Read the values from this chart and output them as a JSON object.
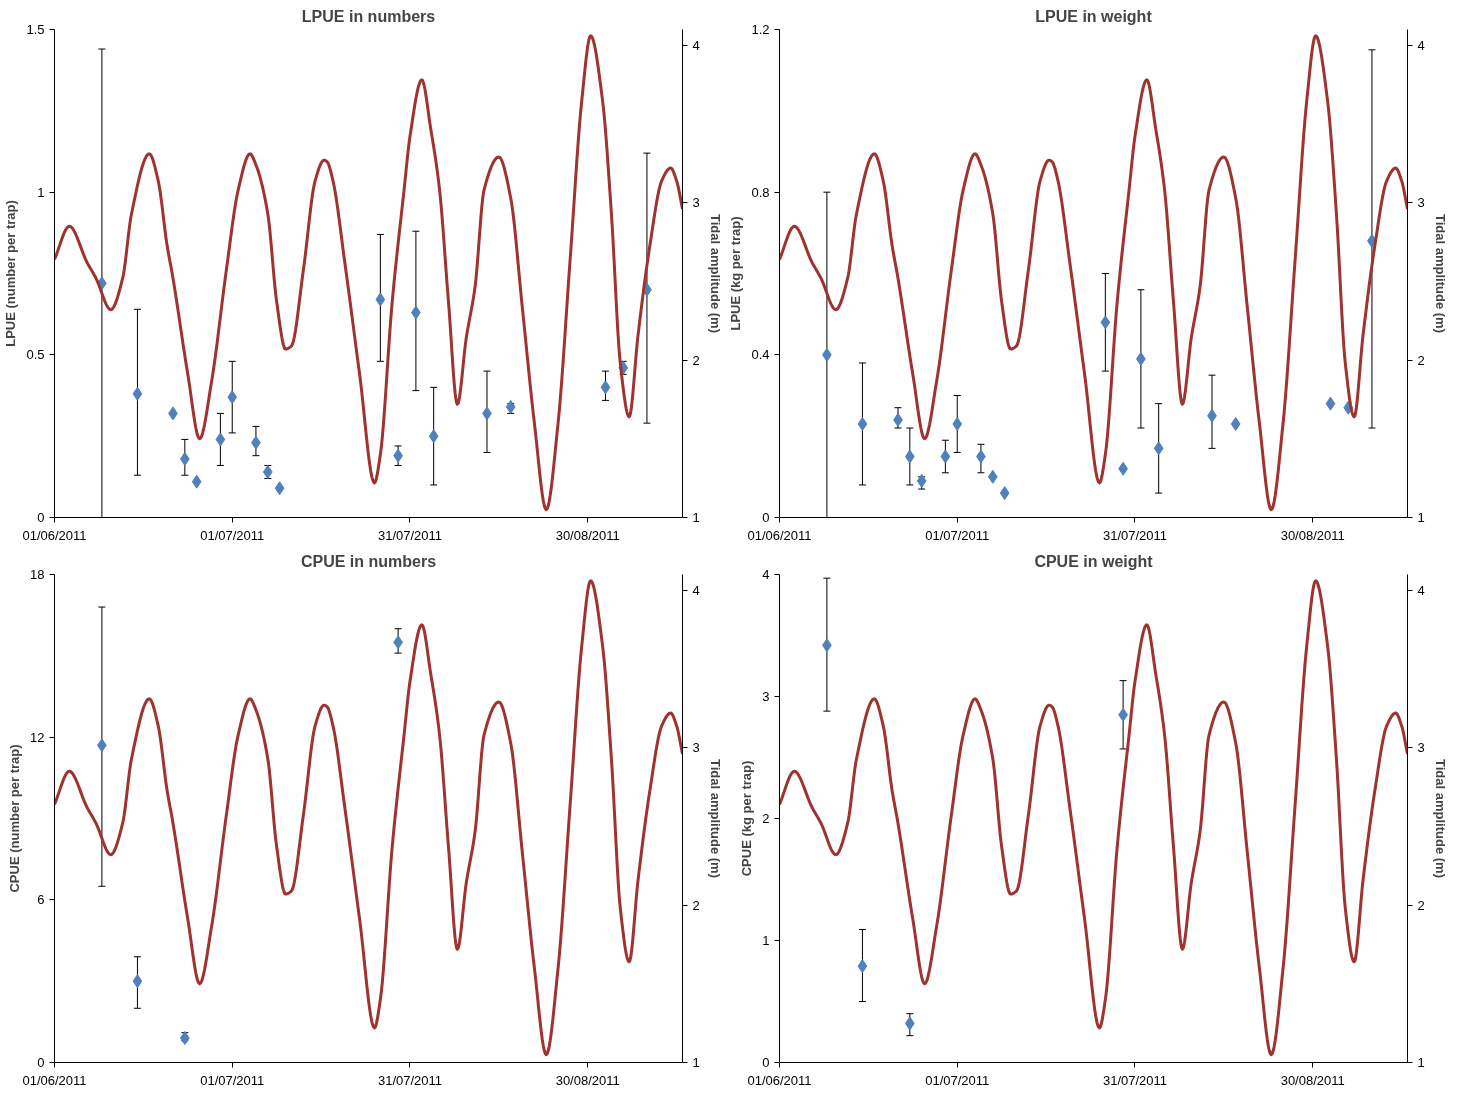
{
  "chart_data": [
    {
      "type": "scatter",
      "title": "LPUE in numbers",
      "ylabel": "LPUE (number per trap)",
      "y2label": "Tidal amplitude (m)",
      "marker": "diamond",
      "xlim": [
        "2011-06-01",
        "2011-09-15"
      ],
      "xticks": [
        {
          "value": "2011-06-01",
          "label": "01/06/2011"
        },
        {
          "value": "2011-07-01",
          "label": "01/07/2011"
        },
        {
          "value": "2011-07-31",
          "label": "31/07/2011"
        },
        {
          "value": "2011-08-30",
          "label": "30/08/2011"
        }
      ],
      "ylim": [
        0,
        1.5
      ],
      "yticks": [
        0,
        0.5,
        1,
        1.5
      ],
      "y2lim": [
        1,
        4.1
      ],
      "y2ticks": [
        1,
        2,
        3,
        4
      ],
      "series": [
        {
          "color": "#4f81bd",
          "x": [
            "2011-06-09",
            "2011-06-15",
            "2011-06-21",
            "2011-06-23",
            "2011-06-25",
            "2011-06-29",
            "2011-07-01",
            "2011-07-05",
            "2011-07-07",
            "2011-07-09",
            "2011-07-26",
            "2011-07-29",
            "2011-08-01",
            "2011-08-04",
            "2011-08-13",
            "2011-08-17",
            "2011-09-02",
            "2011-09-05",
            "2011-09-09"
          ],
          "values": [
            0.72,
            0.38,
            0.32,
            0.18,
            0.11,
            0.24,
            0.37,
            0.23,
            0.14,
            0.09,
            0.67,
            0.19,
            0.63,
            0.25,
            0.32,
            0.34,
            0.4,
            0.46,
            0.7
          ],
          "errors": [
            [
              0,
              1.44
            ],
            [
              0.13,
              0.64
            ],
            null,
            [
              0.13,
              0.24
            ],
            null,
            [
              0.16,
              0.32
            ],
            [
              0.26,
              0.48
            ],
            [
              0.19,
              0.28
            ],
            [
              0.12,
              0.16
            ],
            null,
            [
              0.48,
              0.87
            ],
            [
              0.16,
              0.22
            ],
            [
              0.39,
              0.88
            ],
            [
              0.1,
              0.4
            ],
            [
              0.2,
              0.45
            ],
            [
              0.32,
              0.35
            ],
            [
              0.36,
              0.45
            ],
            [
              0.44,
              0.48
            ],
            [
              0.29,
              1.12
            ]
          ]
        },
        {
          "type": "line",
          "marker": "none",
          "axis": "y2",
          "color": "#9e3330",
          "x": [
            "2011-06-01",
            "2011-06-03T12:00",
            "2011-06-06T12:00",
            "2011-06-08",
            "2011-06-10T12:00",
            "2011-06-12T12:00",
            "2011-06-14",
            "2011-06-17",
            "2011-06-18T12:00",
            "2011-06-20",
            "2011-06-21",
            "2011-06-23T12:00",
            "2011-06-25T12:00",
            "2011-06-27T12:00",
            "2011-06-30",
            "2011-07-02",
            "2011-07-04",
            "2011-07-05",
            "2011-07-07",
            "2011-07-08T12:00",
            "2011-07-10",
            "2011-07-11",
            "2011-07-13",
            "2011-07-15",
            "2011-07-16T12:00",
            "2011-07-17",
            "2011-07-18",
            "2011-07-20",
            "2011-07-22T12:00",
            "2011-07-25",
            "2011-07-26",
            "2011-07-28",
            "2011-07-30",
            "2011-07-31",
            "2011-08-02",
            "2011-08-03T12:00",
            "2011-08-05",
            "2011-08-06T12:00",
            "2011-08-08",
            "2011-08-09T12:00",
            "2011-08-11",
            "2011-08-12T12:00",
            "2011-08-15",
            "2011-08-17",
            "2011-08-19",
            "2011-08-21",
            "2011-08-23",
            "2011-08-25",
            "2011-08-27",
            "2011-08-29",
            "2011-08-30T12:00",
            "2011-09-01T12:00",
            "2011-09-03",
            "2011-09-04T12:00",
            "2011-09-06",
            "2011-09-07T12:00",
            "2011-09-09T12:00",
            "2011-09-11T12:00",
            "2011-09-13",
            "2011-09-14",
            "2011-09-15"
          ],
          "values": [
            2.64,
            2.85,
            2.62,
            2.52,
            2.32,
            2.52,
            2.93,
            3.31,
            3.14,
            2.73,
            2.52,
            1.91,
            1.5,
            1.86,
            2.57,
            3.08,
            3.31,
            3.24,
            2.93,
            2.37,
            2.07,
            2.09,
            2.57,
            3.14,
            3.27,
            3.26,
            3.14,
            2.62,
            1.91,
            1.22,
            1.4,
            2.37,
            3.08,
            3.42,
            3.78,
            3.47,
            3.08,
            2.37,
            1.72,
            2.14,
            2.47,
            3.08,
            3.29,
            3.03,
            2.32,
            1.6,
            1.05,
            1.6,
            2.62,
            3.65,
            4.06,
            3.65,
            2.93,
            1.98,
            1.64,
            2.16,
            2.73,
            3.14,
            3.22,
            3.14,
            2.96
          ]
        }
      ]
    },
    {
      "type": "scatter",
      "title": "LPUE in weight",
      "ylabel": "LPUE (kg per trap)",
      "y2label": "Tidal amplitude (m)",
      "marker": "diamond",
      "xlim": [
        "2011-06-01",
        "2011-09-15"
      ],
      "xticks": [
        {
          "value": "2011-06-01",
          "label": "01/06/2011"
        },
        {
          "value": "2011-07-01",
          "label": "01/07/2011"
        },
        {
          "value": "2011-07-31",
          "label": "31/07/2011"
        },
        {
          "value": "2011-08-30",
          "label": "30/08/2011"
        }
      ],
      "ylim": [
        0,
        1.2
      ],
      "yticks": [
        0,
        0.4,
        0.8,
        1.2
      ],
      "y2lim": [
        1,
        4.1
      ],
      "y2ticks": [
        1,
        2,
        3,
        4
      ],
      "series": [
        {
          "color": "#4f81bd",
          "x": [
            "2011-06-09",
            "2011-06-15",
            "2011-06-21",
            "2011-06-23",
            "2011-06-25",
            "2011-06-29",
            "2011-07-01",
            "2011-07-05",
            "2011-07-07",
            "2011-07-09",
            "2011-07-26",
            "2011-07-29",
            "2011-08-01",
            "2011-08-04",
            "2011-08-13",
            "2011-08-17",
            "2011-09-02",
            "2011-09-05",
            "2011-09-09"
          ],
          "values": [
            0.4,
            0.23,
            0.24,
            0.15,
            0.09,
            0.15,
            0.23,
            0.15,
            0.1,
            0.06,
            0.48,
            0.12,
            0.39,
            0.17,
            0.25,
            0.23,
            0.28,
            0.27,
            0.68
          ],
          "errors": [
            [
              0,
              0.8
            ],
            [
              0.08,
              0.38
            ],
            [
              0.22,
              0.27
            ],
            [
              0.08,
              0.22
            ],
            [
              0.07,
              0.1
            ],
            [
              0.11,
              0.19
            ],
            [
              0.16,
              0.3
            ],
            [
              0.11,
              0.18
            ],
            null,
            null,
            [
              0.36,
              0.6
            ],
            null,
            [
              0.22,
              0.56
            ],
            [
              0.06,
              0.28
            ],
            [
              0.17,
              0.35
            ],
            null,
            null,
            null,
            [
              0.22,
              1.15
            ]
          ]
        },
        {
          "type": "line",
          "marker": "none",
          "axis": "y2",
          "color": "#9e3330",
          "x": [
            "2011-06-01",
            "2011-06-03T12:00",
            "2011-06-06T12:00",
            "2011-06-08",
            "2011-06-10T12:00",
            "2011-06-12T12:00",
            "2011-06-14",
            "2011-06-17",
            "2011-06-18T12:00",
            "2011-06-20",
            "2011-06-21",
            "2011-06-23T12:00",
            "2011-06-25T12:00",
            "2011-06-27T12:00",
            "2011-06-30",
            "2011-07-02",
            "2011-07-04",
            "2011-07-05",
            "2011-07-07",
            "2011-07-08T12:00",
            "2011-07-10",
            "2011-07-11",
            "2011-07-13",
            "2011-07-15",
            "2011-07-16T12:00",
            "2011-07-17",
            "2011-07-18",
            "2011-07-20",
            "2011-07-22T12:00",
            "2011-07-25",
            "2011-07-26",
            "2011-07-28",
            "2011-07-30",
            "2011-07-31",
            "2011-08-02",
            "2011-08-03T12:00",
            "2011-08-05",
            "2011-08-06T12:00",
            "2011-08-08",
            "2011-08-09T12:00",
            "2011-08-11",
            "2011-08-12T12:00",
            "2011-08-15",
            "2011-08-17",
            "2011-08-19",
            "2011-08-21",
            "2011-08-23",
            "2011-08-25",
            "2011-08-27",
            "2011-08-29",
            "2011-08-30T12:00",
            "2011-09-01T12:00",
            "2011-09-03",
            "2011-09-04T12:00",
            "2011-09-06",
            "2011-09-07T12:00",
            "2011-09-09T12:00",
            "2011-09-11T12:00",
            "2011-09-13",
            "2011-09-14",
            "2011-09-15"
          ],
          "values": [
            2.64,
            2.85,
            2.62,
            2.52,
            2.32,
            2.52,
            2.93,
            3.31,
            3.14,
            2.73,
            2.52,
            1.91,
            1.5,
            1.86,
            2.57,
            3.08,
            3.31,
            3.24,
            2.93,
            2.37,
            2.07,
            2.09,
            2.57,
            3.14,
            3.27,
            3.26,
            3.14,
            2.62,
            1.91,
            1.22,
            1.4,
            2.37,
            3.08,
            3.42,
            3.78,
            3.47,
            3.08,
            2.37,
            1.72,
            2.14,
            2.47,
            3.08,
            3.29,
            3.03,
            2.32,
            1.6,
            1.05,
            1.6,
            2.62,
            3.65,
            4.06,
            3.65,
            2.93,
            1.98,
            1.64,
            2.16,
            2.73,
            3.14,
            3.22,
            3.14,
            2.96
          ]
        }
      ]
    },
    {
      "type": "scatter",
      "title": "CPUE in numbers",
      "ylabel": "CPUE (number per trap)",
      "y2label": "Tidal amplitude (m)",
      "marker": "diamond",
      "xlim": [
        "2011-06-01",
        "2011-09-15"
      ],
      "xticks": [
        {
          "value": "2011-06-01",
          "label": "01/06/2011"
        },
        {
          "value": "2011-07-01",
          "label": "01/07/2011"
        },
        {
          "value": "2011-07-31",
          "label": "31/07/2011"
        },
        {
          "value": "2011-08-30",
          "label": "30/08/2011"
        }
      ],
      "ylim": [
        0,
        18
      ],
      "yticks": [
        0,
        6,
        12,
        18
      ],
      "y2lim": [
        1,
        4.1
      ],
      "y2ticks": [
        1,
        2,
        3,
        4
      ],
      "series": [
        {
          "color": "#4f81bd",
          "x": [
            "2011-06-09",
            "2011-06-15",
            "2011-06-23",
            "2011-07-29"
          ],
          "values": [
            11.7,
            3.0,
            0.9,
            15.5
          ],
          "errors": [
            [
              6.5,
              16.8
            ],
            [
              2.0,
              3.9
            ],
            [
              0.8,
              1.1
            ],
            [
              15.1,
              16.0
            ]
          ]
        },
        {
          "type": "line",
          "marker": "none",
          "axis": "y2",
          "color": "#9e3330",
          "x": [
            "2011-06-01",
            "2011-06-03T12:00",
            "2011-06-06T12:00",
            "2011-06-08",
            "2011-06-10T12:00",
            "2011-06-12T12:00",
            "2011-06-14",
            "2011-06-17",
            "2011-06-18T12:00",
            "2011-06-20",
            "2011-06-21",
            "2011-06-23T12:00",
            "2011-06-25T12:00",
            "2011-06-27T12:00",
            "2011-06-30",
            "2011-07-02",
            "2011-07-04",
            "2011-07-05",
            "2011-07-07",
            "2011-07-08T12:00",
            "2011-07-10",
            "2011-07-11",
            "2011-07-13",
            "2011-07-15",
            "2011-07-16T12:00",
            "2011-07-17",
            "2011-07-18",
            "2011-07-20",
            "2011-07-22T12:00",
            "2011-07-25",
            "2011-07-26",
            "2011-07-28",
            "2011-07-30",
            "2011-07-31",
            "2011-08-02",
            "2011-08-03T12:00",
            "2011-08-05",
            "2011-08-06T12:00",
            "2011-08-08",
            "2011-08-09T12:00",
            "2011-08-11",
            "2011-08-12T12:00",
            "2011-08-15",
            "2011-08-17",
            "2011-08-19",
            "2011-08-21",
            "2011-08-23",
            "2011-08-25",
            "2011-08-27",
            "2011-08-29",
            "2011-08-30T12:00",
            "2011-09-01T12:00",
            "2011-09-03",
            "2011-09-04T12:00",
            "2011-09-06",
            "2011-09-07T12:00",
            "2011-09-09T12:00",
            "2011-09-11T12:00",
            "2011-09-13",
            "2011-09-14",
            "2011-09-15"
          ],
          "values": [
            2.64,
            2.85,
            2.62,
            2.52,
            2.32,
            2.52,
            2.93,
            3.31,
            3.14,
            2.73,
            2.52,
            1.91,
            1.5,
            1.86,
            2.57,
            3.08,
            3.31,
            3.24,
            2.93,
            2.37,
            2.07,
            2.09,
            2.57,
            3.14,
            3.27,
            3.26,
            3.14,
            2.62,
            1.91,
            1.22,
            1.4,
            2.37,
            3.08,
            3.42,
            3.78,
            3.47,
            3.08,
            2.37,
            1.72,
            2.14,
            2.47,
            3.08,
            3.29,
            3.03,
            2.32,
            1.6,
            1.05,
            1.6,
            2.62,
            3.65,
            4.06,
            3.65,
            2.93,
            1.98,
            1.64,
            2.16,
            2.73,
            3.14,
            3.22,
            3.14,
            2.96
          ]
        }
      ]
    },
    {
      "type": "scatter",
      "title": "CPUE in weight",
      "ylabel": "CPUE (kg per trap)",
      "y2label": "Tidal amplitude (m)",
      "marker": "diamond",
      "xlim": [
        "2011-06-01",
        "2011-09-15"
      ],
      "xticks": [
        {
          "value": "2011-06-01",
          "label": "01/06/2011"
        },
        {
          "value": "2011-07-01",
          "label": "01/07/2011"
        },
        {
          "value": "2011-07-31",
          "label": "31/07/2011"
        },
        {
          "value": "2011-08-30",
          "label": "30/08/2011"
        }
      ],
      "ylim": [
        0,
        4
      ],
      "yticks": [
        0,
        1,
        2,
        3,
        4
      ],
      "y2lim": [
        1,
        4.1
      ],
      "y2ticks": [
        1,
        2,
        3,
        4
      ],
      "series": [
        {
          "color": "#4f81bd",
          "x": [
            "2011-06-09",
            "2011-06-15",
            "2011-06-23",
            "2011-07-29"
          ],
          "values": [
            3.42,
            0.79,
            0.32,
            2.85
          ],
          "errors": [
            [
              2.88,
              3.97
            ],
            [
              0.5,
              1.09
            ],
            [
              0.22,
              0.4
            ],
            [
              2.57,
              3.13
            ]
          ]
        },
        {
          "type": "line",
          "marker": "none",
          "axis": "y2",
          "color": "#9e3330",
          "x": [
            "2011-06-01",
            "2011-06-03T12:00",
            "2011-06-06T12:00",
            "2011-06-08",
            "2011-06-10T12:00",
            "2011-06-12T12:00",
            "2011-06-14",
            "2011-06-17",
            "2011-06-18T12:00",
            "2011-06-20",
            "2011-06-21",
            "2011-06-23T12:00",
            "2011-06-25T12:00",
            "2011-06-27T12:00",
            "2011-06-30",
            "2011-07-02",
            "2011-07-04",
            "2011-07-05",
            "2011-07-07",
            "2011-07-08T12:00",
            "2011-07-10",
            "2011-07-11",
            "2011-07-13",
            "2011-07-15",
            "2011-07-16T12:00",
            "2011-07-17",
            "2011-07-18",
            "2011-07-20",
            "2011-07-22T12:00",
            "2011-07-25",
            "2011-07-26",
            "2011-07-28",
            "2011-07-30",
            "2011-07-31",
            "2011-08-02",
            "2011-08-03T12:00",
            "2011-08-05",
            "2011-08-06T12:00",
            "2011-08-08",
            "2011-08-09T12:00",
            "2011-08-11",
            "2011-08-12T12:00",
            "2011-08-15",
            "2011-08-17",
            "2011-08-19",
            "2011-08-21",
            "2011-08-23",
            "2011-08-25",
            "2011-08-27",
            "2011-08-29",
            "2011-08-30T12:00",
            "2011-09-01T12:00",
            "2011-09-03",
            "2011-09-04T12:00",
            "2011-09-06",
            "2011-09-07T12:00",
            "2011-09-09T12:00",
            "2011-09-11T12:00",
            "2011-09-13",
            "2011-09-14",
            "2011-09-15"
          ],
          "values": [
            2.64,
            2.85,
            2.62,
            2.52,
            2.32,
            2.52,
            2.93,
            3.31,
            3.14,
            2.73,
            2.52,
            1.91,
            1.5,
            1.86,
            2.57,
            3.08,
            3.31,
            3.24,
            2.93,
            2.37,
            2.07,
            2.09,
            2.57,
            3.14,
            3.27,
            3.26,
            3.14,
            2.62,
            1.91,
            1.22,
            1.4,
            2.37,
            3.08,
            3.42,
            3.78,
            3.47,
            3.08,
            2.37,
            1.72,
            2.14,
            2.47,
            3.08,
            3.29,
            3.03,
            2.32,
            1.6,
            1.05,
            1.6,
            2.62,
            3.65,
            4.06,
            3.65,
            2.93,
            1.98,
            1.64,
            2.16,
            2.73,
            3.14,
            3.22,
            3.14,
            2.96
          ]
        }
      ]
    }
  ]
}
